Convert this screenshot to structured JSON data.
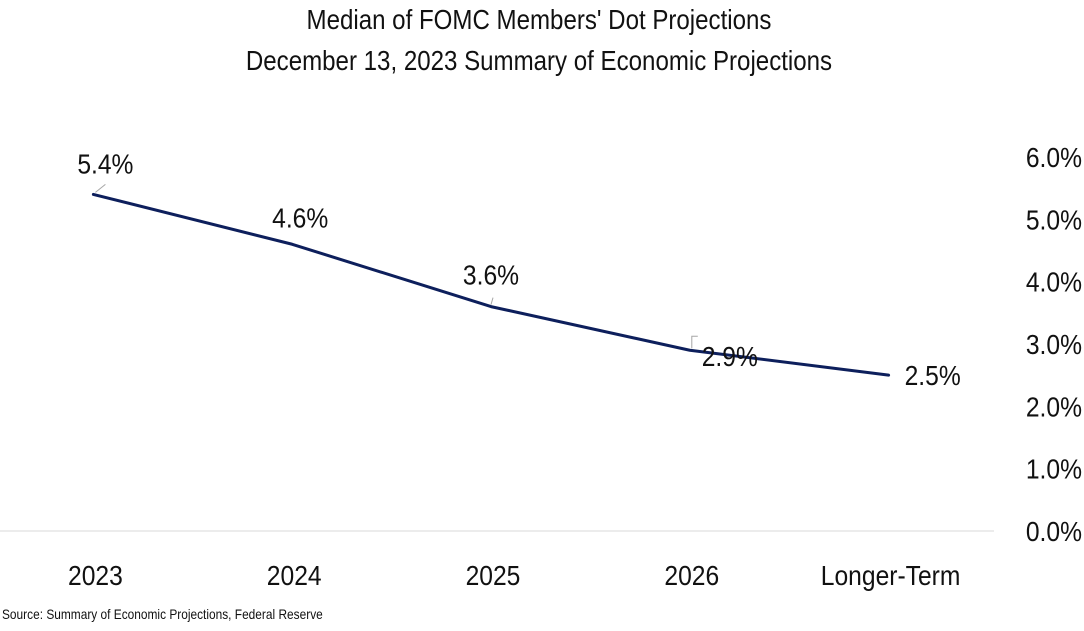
{
  "header": {
    "title": "Median of FOMC Members' Dot Projections",
    "subtitle": "December 13, 2023 Summary of Economic Projections"
  },
  "footer": {
    "source": "Source: Summary of Economic Projections, Federal Reserve"
  },
  "colors": {
    "line": "#0d1f5c",
    "baseline": "#d9d9d9",
    "leader": "#a6a6a6",
    "text": "#111111"
  },
  "chart_data": {
    "type": "line",
    "title": "Median of FOMC Members' Dot Projections",
    "subtitle": "December 13, 2023 Summary of Economic Projections",
    "categories": [
      "2023",
      "2024",
      "2025",
      "2026",
      "Longer-Term"
    ],
    "series": [
      {
        "values": [
          5.4,
          4.6,
          3.6,
          2.9,
          2.5
        ]
      }
    ],
    "data_labels": [
      "5.4%",
      "4.6%",
      "3.6%",
      "2.9%",
      "2.5%"
    ],
    "y_axis": {
      "position": "right",
      "range": [
        0,
        6
      ],
      "ticks": [
        "0.0%",
        "1.0%",
        "2.0%",
        "3.0%",
        "4.0%",
        "5.0%",
        "6.0%"
      ]
    },
    "grid": false,
    "legend": "none"
  }
}
